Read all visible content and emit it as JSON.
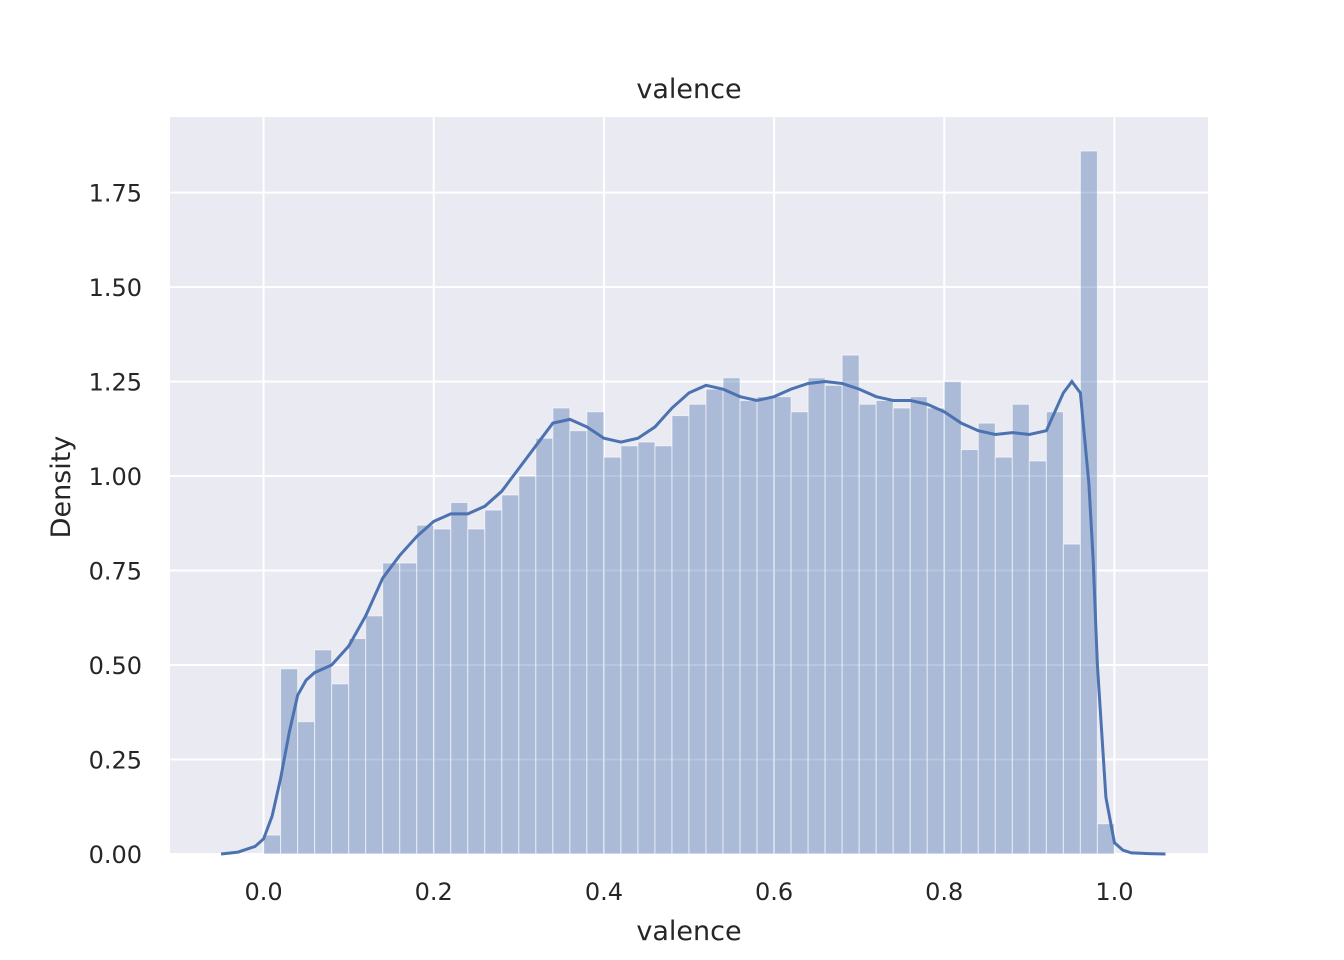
{
  "chart_data": {
    "type": "histogram",
    "title": "valence",
    "xlabel": "valence",
    "ylabel": "Density",
    "xlim": [
      -0.11,
      1.11
    ],
    "ylim": [
      0,
      1.95
    ],
    "grid": true,
    "xticks": [
      "0.0",
      "0.2",
      "0.4",
      "0.6",
      "0.8",
      "1.0"
    ],
    "xtick_values": [
      0.0,
      0.2,
      0.4,
      0.6,
      0.8,
      1.0
    ],
    "yticks": [
      "0.00",
      "0.25",
      "0.50",
      "0.75",
      "1.00",
      "1.25",
      "1.50",
      "1.75"
    ],
    "ytick_values": [
      0.0,
      0.25,
      0.5,
      0.75,
      1.0,
      1.25,
      1.5,
      1.75
    ],
    "colors": {
      "background": "#eaeaf2",
      "grid": "#ffffff",
      "bar": "#4c72b0",
      "kde": "#4c72b0"
    },
    "bins": {
      "edges": [
        0.0,
        0.02,
        0.04,
        0.06,
        0.08,
        0.1,
        0.12,
        0.14,
        0.16,
        0.18,
        0.2,
        0.22,
        0.24,
        0.26,
        0.28,
        0.3,
        0.32,
        0.34,
        0.36,
        0.38,
        0.4,
        0.42,
        0.44,
        0.46,
        0.48,
        0.5,
        0.52,
        0.54,
        0.56,
        0.58,
        0.6,
        0.62,
        0.64,
        0.66,
        0.68,
        0.7,
        0.72,
        0.74,
        0.76,
        0.78,
        0.8,
        0.82,
        0.84,
        0.86,
        0.88,
        0.9,
        0.92,
        0.94,
        0.96,
        0.98,
        1.0
      ],
      "densities": [
        0.05,
        0.49,
        0.35,
        0.54,
        0.45,
        0.57,
        0.63,
        0.77,
        0.77,
        0.87,
        0.86,
        0.93,
        0.86,
        0.91,
        0.95,
        1.0,
        1.1,
        1.18,
        1.12,
        1.17,
        1.05,
        1.08,
        1.09,
        1.08,
        1.16,
        1.19,
        1.23,
        1.26,
        1.2,
        1.21,
        1.21,
        1.17,
        1.26,
        1.24,
        1.32,
        1.19,
        1.2,
        1.18,
        1.21,
        1.18,
        1.25,
        1.07,
        1.14,
        1.05,
        1.19,
        1.04,
        1.17,
        0.82,
        1.86,
        0.08
      ]
    },
    "kde": {
      "x": [
        -0.05,
        -0.03,
        -0.01,
        0.0,
        0.01,
        0.02,
        0.03,
        0.04,
        0.05,
        0.06,
        0.08,
        0.1,
        0.12,
        0.14,
        0.16,
        0.18,
        0.2,
        0.22,
        0.24,
        0.26,
        0.28,
        0.3,
        0.32,
        0.34,
        0.36,
        0.38,
        0.4,
        0.42,
        0.44,
        0.46,
        0.48,
        0.5,
        0.52,
        0.54,
        0.56,
        0.58,
        0.6,
        0.62,
        0.64,
        0.66,
        0.68,
        0.7,
        0.72,
        0.74,
        0.76,
        0.78,
        0.8,
        0.82,
        0.84,
        0.86,
        0.88,
        0.9,
        0.92,
        0.94,
        0.95,
        0.96,
        0.97,
        0.975,
        0.98,
        0.99,
        1.0,
        1.01,
        1.02,
        1.04,
        1.06
      ],
      "y": [
        0.0,
        0.005,
        0.02,
        0.04,
        0.1,
        0.2,
        0.32,
        0.42,
        0.46,
        0.48,
        0.5,
        0.55,
        0.63,
        0.73,
        0.79,
        0.84,
        0.88,
        0.9,
        0.9,
        0.92,
        0.96,
        1.02,
        1.08,
        1.14,
        1.15,
        1.13,
        1.1,
        1.09,
        1.1,
        1.13,
        1.18,
        1.22,
        1.24,
        1.23,
        1.21,
        1.2,
        1.21,
        1.23,
        1.245,
        1.25,
        1.245,
        1.23,
        1.21,
        1.2,
        1.2,
        1.19,
        1.17,
        1.14,
        1.12,
        1.11,
        1.115,
        1.11,
        1.12,
        1.22,
        1.25,
        1.22,
        0.98,
        0.78,
        0.5,
        0.15,
        0.03,
        0.01,
        0.003,
        0.001,
        0.0
      ]
    }
  }
}
